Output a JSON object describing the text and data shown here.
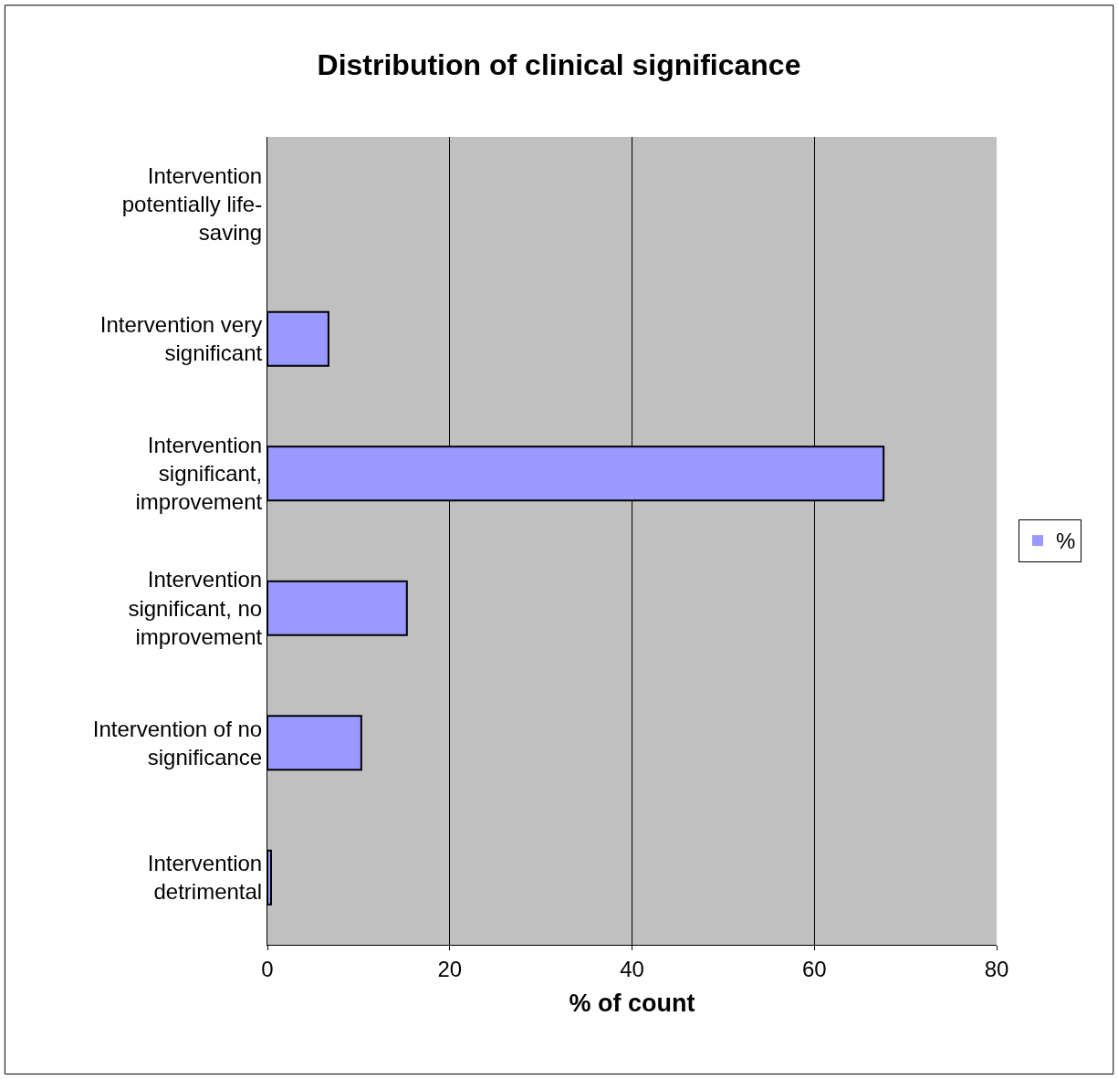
{
  "chart_data": {
    "type": "bar",
    "orientation": "horizontal",
    "title": "Distribution of clinical significance",
    "xlabel": "% of count",
    "categories": [
      "Intervention potentially life-saving",
      "Intervention very significant",
      "Intervention significant, improvement",
      "Intervention significant, no improvement",
      "Intervention of no significance",
      "Intervention detrimental"
    ],
    "series": [
      {
        "name": "%",
        "color": "#9999ff",
        "values": [
          0,
          6.7,
          67.6,
          15.3,
          10.3,
          0.4
        ]
      }
    ],
    "xlim": [
      0,
      80
    ],
    "xticks": [
      0,
      20,
      40,
      60,
      80
    ],
    "grid": "x",
    "legend": "right"
  }
}
